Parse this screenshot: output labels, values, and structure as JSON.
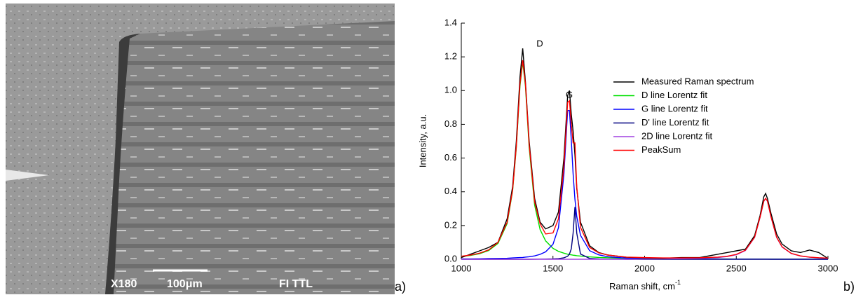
{
  "image_panel": {
    "magnification": "X180",
    "scale_bar": "100μm",
    "detector": "FI TTL",
    "panel_label": "a)"
  },
  "chart_data": {
    "type": "line",
    "panel_label": "b)",
    "x_label": "Raman shift, cm",
    "x_label_sup": "-1",
    "y_label": "Intensity, a.u.",
    "annotations": [
      "D",
      "G"
    ],
    "x": [
      1000,
      1050,
      1100,
      1150,
      1200,
      1250,
      1280,
      1300,
      1320,
      1335,
      1350,
      1370,
      1400,
      1430,
      1460,
      1500,
      1530,
      1560,
      1580,
      1590,
      1600,
      1610,
      1620,
      1630,
      1650,
      1700,
      1750,
      1800,
      1900,
      2000,
      2100,
      2200,
      2300,
      2400,
      2450,
      2500,
      2550,
      2600,
      2630,
      2650,
      2660,
      2670,
      2690,
      2720,
      2750,
      2800,
      2850,
      2900,
      2950,
      3000
    ],
    "xlim": [
      1000,
      3000
    ],
    "xticks": [
      1000,
      1500,
      2000,
      2500,
      3000
    ],
    "ylim": [
      0,
      1.4
    ],
    "yticks": [
      {
        "value": 0,
        "label": "0.0"
      },
      {
        "value": 0.2,
        "label": "0.2"
      },
      {
        "value": 0.4,
        "label": "0.4"
      },
      {
        "value": 0.6,
        "label": "0.6"
      },
      {
        "value": 0.8,
        "label": "0.8"
      },
      {
        "value": 1,
        "label": "1.0"
      },
      {
        "value": 1.2,
        "label": "1.2"
      },
      {
        "value": 1.4,
        "label": "1.4"
      }
    ],
    "series": [
      {
        "name": "Measured Raman spectrum",
        "color": "#000000",
        "values": [
          0.01,
          0.03,
          0.05,
          0.07,
          0.1,
          0.24,
          0.43,
          0.7,
          1.08,
          1.25,
          1.05,
          0.7,
          0.36,
          0.22,
          0.18,
          0.2,
          0.28,
          0.6,
          0.97,
          1.0,
          0.86,
          0.76,
          0.62,
          0.42,
          0.22,
          0.08,
          0.04,
          0.025,
          0.012,
          0.008,
          0.006,
          0.01,
          0.01,
          0.03,
          0.04,
          0.05,
          0.06,
          0.14,
          0.26,
          0.37,
          0.39,
          0.36,
          0.27,
          0.15,
          0.09,
          0.05,
          0.04,
          0.055,
          0.04,
          0.005
        ]
      },
      {
        "name": "D line Lorentz fit",
        "color": "#00e000",
        "values": [
          0.016,
          0.023,
          0.033,
          0.052,
          0.094,
          0.212,
          0.405,
          0.663,
          1.025,
          1.17,
          1.025,
          0.663,
          0.321,
          0.176,
          0.109,
          0.065,
          0.047,
          0.036,
          0.03,
          0.028,
          0.026,
          0.024,
          0.023,
          0.021,
          0.019,
          0.014,
          0.011,
          0.009,
          0.006,
          0.004,
          0.003,
          0.0025,
          0.002,
          0.0016,
          0.0015,
          0.0014,
          0.0013,
          0.0012,
          0.0011,
          0.0011,
          0.0011,
          0.001,
          0.001,
          0.001,
          0.001,
          0.0009,
          0.0009,
          0.0008,
          0.0008,
          0.0008
        ]
      },
      {
        "name": "G line Lorentz fit",
        "color": "#0000ff",
        "values": [
          0.002,
          0.0025,
          0.003,
          0.004,
          0.005,
          0.006,
          0.008,
          0.009,
          0.01,
          0.011,
          0.013,
          0.015,
          0.02,
          0.029,
          0.044,
          0.089,
          0.187,
          0.506,
          0.882,
          0.882,
          0.707,
          0.506,
          0.355,
          0.254,
          0.142,
          0.051,
          0.026,
          0.015,
          0.007,
          0.004,
          0.003,
          0.002,
          0.0014,
          0.0011,
          0.001,
          0.0009,
          0.0008,
          0.0007,
          0.0007,
          0.0007,
          0.0007,
          0.0007,
          0.0006,
          0.0006,
          0.0006,
          0.0006,
          0.0005,
          0.0005,
          0.0005,
          0.0005
        ]
      },
      {
        "name": "D' line Lorentz fit",
        "color": "#000080",
        "values": [
          0,
          0,
          0,
          0,
          0,
          0,
          0,
          0,
          0,
          0,
          0,
          0,
          0.0006,
          0.0009,
          0.0012,
          0.0021,
          0.0038,
          0.0084,
          0.018,
          0.031,
          0.062,
          0.155,
          0.31,
          0.155,
          0.031,
          0.0048,
          0.0018,
          0.001,
          0,
          0,
          0,
          0,
          0,
          0,
          0,
          0,
          0,
          0,
          0,
          0,
          0,
          0,
          0,
          0,
          0,
          0,
          0,
          0,
          0,
          0
        ]
      },
      {
        "name": "2D line Lorentz fit",
        "color": "#a040e0",
        "values": [
          0,
          0,
          0,
          0,
          0,
          0,
          0,
          0,
          0,
          0,
          0,
          0,
          0,
          0,
          0,
          0,
          0,
          0,
          0,
          0,
          0,
          0,
          0,
          0,
          0,
          0,
          0,
          0,
          0,
          0.0017,
          0.0023,
          0.0034,
          0.0055,
          0.0105,
          0.0158,
          0.0264,
          0.0516,
          0.1295,
          0.249,
          0.343,
          0.36,
          0.343,
          0.249,
          0.1295,
          0.072,
          0.0337,
          0.0191,
          0.0122,
          0.0085,
          0.0062
        ]
      },
      {
        "name": "PeakSum",
        "color": "#ff0000",
        "values": [
          0.018,
          0.025,
          0.036,
          0.056,
          0.1,
          0.22,
          0.41,
          0.67,
          1.04,
          1.18,
          1.04,
          0.68,
          0.34,
          0.21,
          0.15,
          0.156,
          0.24,
          0.55,
          0.93,
          0.94,
          0.8,
          0.69,
          0.69,
          0.43,
          0.19,
          0.07,
          0.038,
          0.025,
          0.013,
          0.01,
          0.008,
          0.008,
          0.009,
          0.013,
          0.018,
          0.029,
          0.054,
          0.131,
          0.25,
          0.345,
          0.362,
          0.345,
          0.25,
          0.131,
          0.074,
          0.035,
          0.02,
          0.013,
          0.009,
          0.007
        ]
      }
    ]
  }
}
